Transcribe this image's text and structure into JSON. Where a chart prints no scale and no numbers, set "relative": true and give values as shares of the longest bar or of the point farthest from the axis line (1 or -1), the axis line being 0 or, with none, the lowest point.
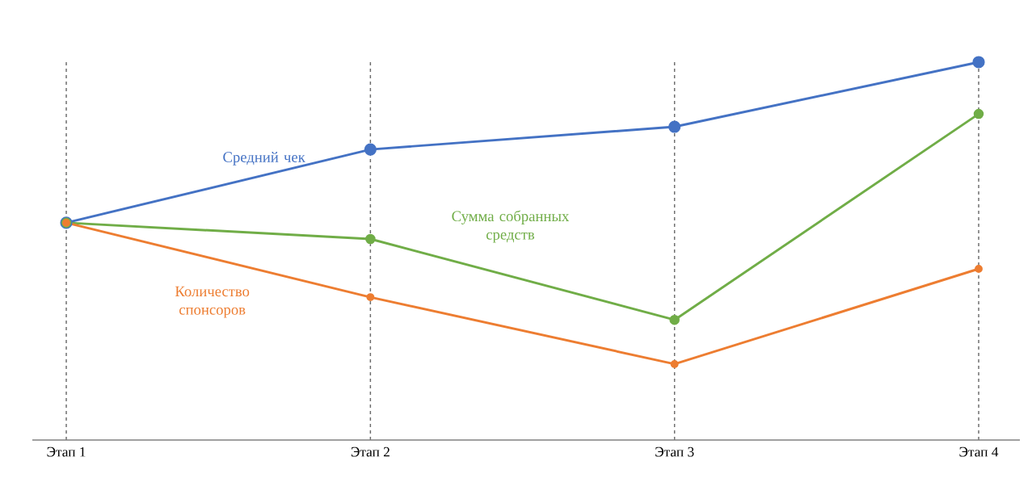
{
  "chart_data": {
    "type": "line",
    "relative": true,
    "categories": [
      "Этап 1",
      "Этап 2",
      "Этап 3",
      "Этап 4"
    ],
    "marker": "circle",
    "line_style": "solid",
    "grid": "x",
    "legend": false,
    "series": [
      {
        "name": "Средний чек",
        "color": "#4472c4",
        "values": [
          0.575,
          0.769,
          0.829,
          1
        ]
      },
      {
        "name": "Сумма собранных средств",
        "color": "#70ad47",
        "values": [
          0.575,
          0.532,
          0.318,
          0.863
        ]
      },
      {
        "name": "Количество спонсоров",
        "color": "#ed7d31",
        "values": [
          0.575,
          0.378,
          0.201,
          0.453
        ]
      }
    ]
  }
}
